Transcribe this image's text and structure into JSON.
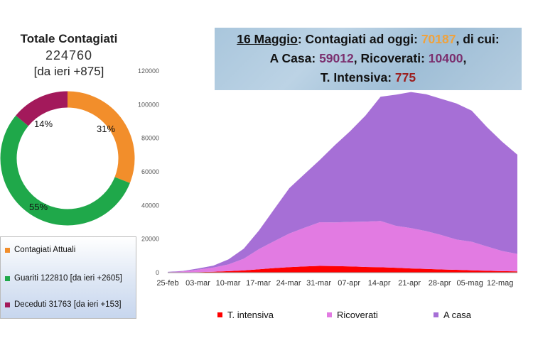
{
  "summary": {
    "title": "Totale Contagiati",
    "total": "224760",
    "delta": "[da ieri +875]"
  },
  "donut": {
    "type": "pie",
    "slices": [
      {
        "label": "Contagiati Attuali",
        "percent_label": "31%",
        "value": 31,
        "color": "#f28e2b"
      },
      {
        "label": "Guariti",
        "percent_label": "55%",
        "value": 55,
        "color": "#1fa84a"
      },
      {
        "label": "Deceduti",
        "percent_label": "14%",
        "value": 14,
        "color": "#a3195b"
      }
    ]
  },
  "legend": [
    {
      "text": "Contagiati Attuali",
      "color": "#f28e2b"
    },
    {
      "text": "Guariti 122810 [da ieri +2605]",
      "color": "#1fa84a"
    },
    {
      "text": "Deceduti 31763 [da ieri +153]",
      "color": "#a3195b"
    }
  ],
  "headline": {
    "date": "16 Maggio",
    "current_label": ": Contagiati ad oggi: ",
    "current_value": "70187",
    "current_suffix": ", di cui:",
    "home_label": "A Casa: ",
    "home_value": "59012",
    "hosp_label": ", Ricoverati: ",
    "hosp_value": "10400",
    "hosp_suffix": ",",
    "icu_label": "T. Intensiva: ",
    "icu_value": "775"
  },
  "chart_data": {
    "type": "area",
    "stacked": true,
    "x_ticks": [
      "25-feb",
      "03-mar",
      "10-mar",
      "17-mar",
      "24-mar",
      "31-mar",
      "07-apr",
      "14-apr",
      "21-apr",
      "28-apr",
      "05-mag",
      "12-mag"
    ],
    "x": [
      "25-feb",
      "28-feb",
      "03-mar",
      "06-mar",
      "10-mar",
      "13-mar",
      "17-mar",
      "20-mar",
      "24-mar",
      "27-mar",
      "31-mar",
      "03-apr",
      "07-apr",
      "10-apr",
      "14-apr",
      "17-apr",
      "21-apr",
      "24-apr",
      "28-apr",
      "01-mag",
      "05-mag",
      "08-mag",
      "12-mag",
      "16-mag"
    ],
    "series": [
      {
        "name": "T. intensiva",
        "color": "#ff0000",
        "values": [
          50,
          100,
          300,
          500,
          900,
          1300,
          2000,
          2700,
          3300,
          3700,
          4000,
          3900,
          3700,
          3400,
          3200,
          2900,
          2500,
          2200,
          1900,
          1700,
          1400,
          1100,
          900,
          775
        ]
      },
      {
        "name": "Ricoverati",
        "color": "#e27be2",
        "values": [
          200,
          600,
          1500,
          2500,
          4000,
          7000,
          12000,
          16000,
          20000,
          23000,
          26000,
          26000,
          26500,
          27000,
          27500,
          25000,
          24000,
          22500,
          20500,
          18000,
          17000,
          14500,
          12000,
          10400
        ]
      },
      {
        "name": "A casa",
        "color": "#a66fd6",
        "values": [
          200,
          300,
          700,
          1200,
          3000,
          6000,
          11000,
          19000,
          27000,
          32000,
          37000,
          46000,
          54000,
          63000,
          74000,
          78000,
          81000,
          81500,
          81000,
          81000,
          78000,
          71000,
          65000,
          59012
        ]
      }
    ],
    "ylim": [
      0,
      120000
    ],
    "y_ticks": [
      0,
      20000,
      40000,
      60000,
      80000,
      100000,
      120000
    ],
    "grid": false,
    "legend_position": "bottom"
  }
}
